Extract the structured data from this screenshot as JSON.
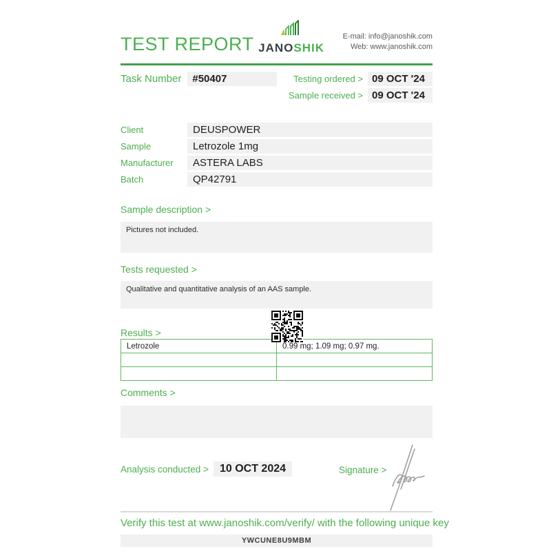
{
  "header": {
    "title": "TEST REPORT",
    "brand": {
      "primary": "JANO",
      "secondary": "SHIK"
    },
    "contact": {
      "email": "E-mail: info@janoshik.com",
      "web": "Web: www.janoshik.com"
    }
  },
  "task": {
    "label": "Task Number",
    "number": "#50407",
    "ordered_label": "Testing ordered >",
    "ordered_date": "09 OCT '24",
    "received_label": "Sample received >",
    "received_date": "09 OCT '24"
  },
  "details": {
    "rows": [
      {
        "label": "Client",
        "value": "DEUSPOWER"
      },
      {
        "label": "Sample",
        "value": "Letrozole 1mg"
      },
      {
        "label": "Manufacturer",
        "value": "ASTERA LABS"
      },
      {
        "label": "Batch",
        "value": "QP42791"
      }
    ]
  },
  "sample_description": {
    "label": "Sample description >",
    "text": "Pictures not included."
  },
  "tests_requested": {
    "label": "Tests requested >",
    "text": "Qualitative and quantitative analysis of an AAS sample."
  },
  "results": {
    "label": "Results >",
    "table_rows": [
      {
        "substance": "Letrozole",
        "result": "0.99 mg; 1.09 mg; 0.97 mg."
      },
      {
        "substance": "",
        "result": ""
      },
      {
        "substance": "",
        "result": ""
      }
    ]
  },
  "comments": {
    "label": "Comments >",
    "text": ""
  },
  "footer": {
    "analysis_label": "Analysis conducted >",
    "analysis_date": "10 OCT 2024",
    "signature_label": "Signature >"
  },
  "verify": {
    "text": "Verify this test at www.janoshik.com/verify/ with the following unique key",
    "key": "YWCUNE8U9MBM"
  },
  "colors": {
    "accent_green": "#4caf50",
    "rule_green": "#43a047",
    "table_border": "#5cb85c",
    "box_bg": "#f1f1f1",
    "text_dark": "#1e1e1e",
    "brand_dark": "#3a4047",
    "signature_gray": "#9c9c9c"
  }
}
